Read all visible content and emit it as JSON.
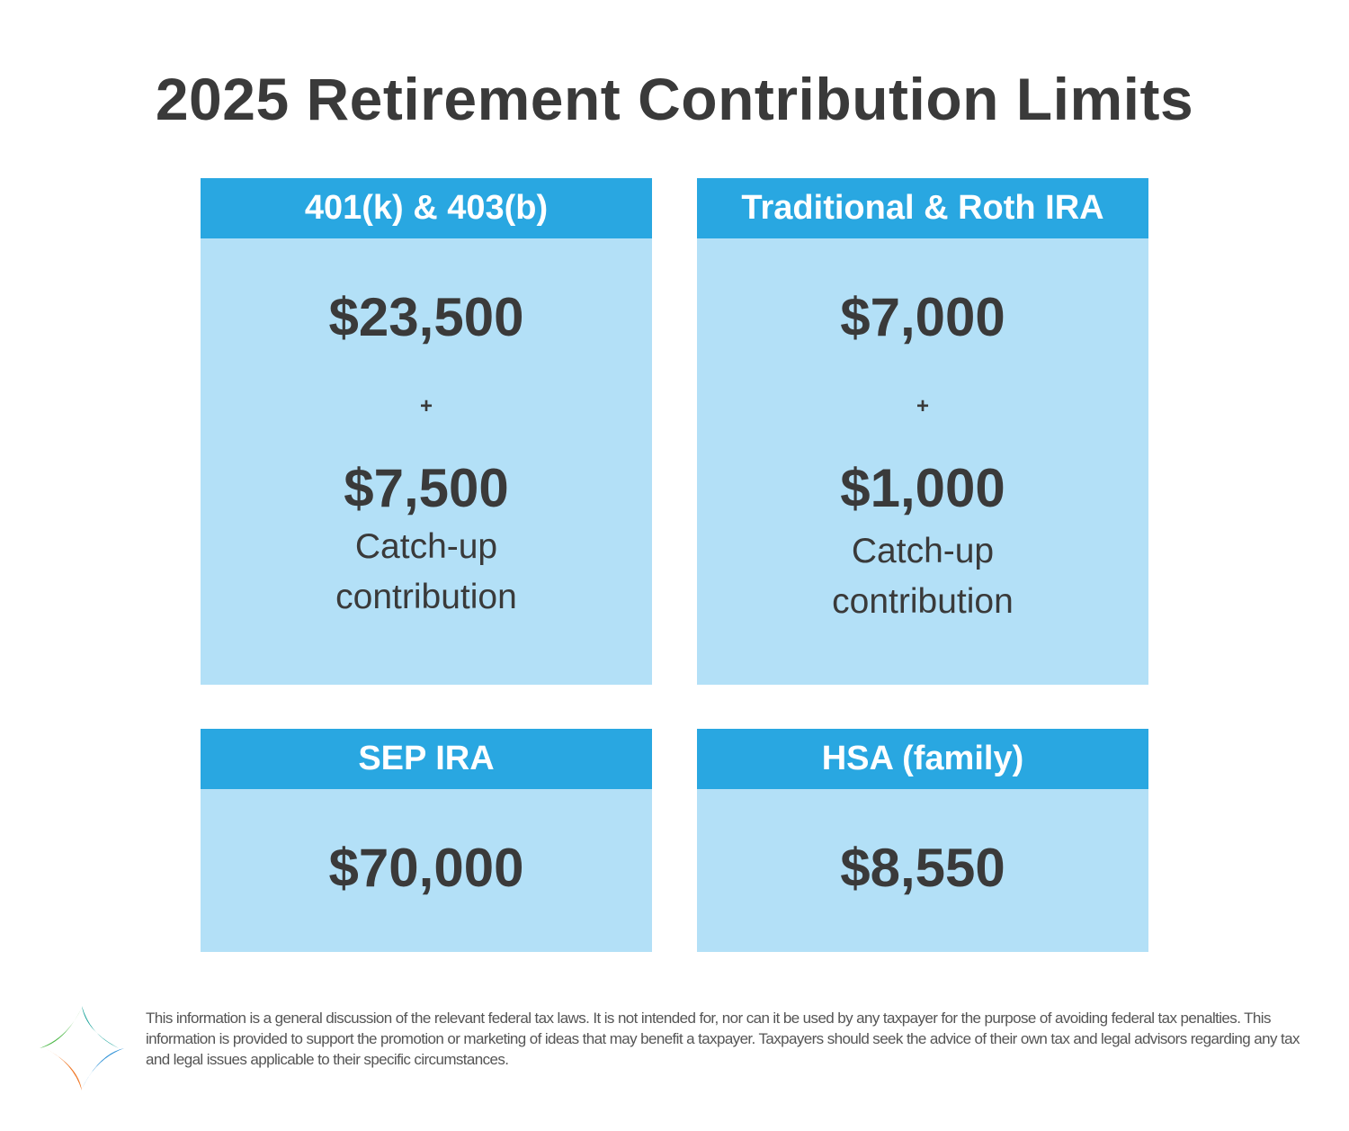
{
  "title": "2025 Retirement Contribution Limits",
  "cards": [
    {
      "header": "401(k) & 403(b)",
      "amount": "$23,500",
      "plus": "+",
      "catchup_amount": "$7,500",
      "catchup_line1": "Catch-up",
      "catchup_line2": "contribution"
    },
    {
      "header": "Traditional & Roth IRA",
      "amount": "$7,000",
      "plus": "+",
      "catchup_amount": "$1,000",
      "catchup_line1": "Catch-up",
      "catchup_line2": "contribution"
    },
    {
      "header": "SEP IRA",
      "amount": "$70,000"
    },
    {
      "header": "HSA (family)",
      "amount": "$8,550"
    }
  ],
  "disclaimer": "This information is a general discussion of the relevant federal tax laws. It is not intended for, nor can it be used by any taxpayer for the purpose of avoiding federal tax penalties. This information is provided to support the promotion or marketing of ideas that may benefit a taxpayer. Taxpayers should seek the advice of their own tax and legal advisors regarding any tax and legal issues applicable to their specific circumstances.",
  "colors": {
    "header_blue": "#29a7e1",
    "card_blue": "#b3e0f7",
    "text_dark": "#3a3a3a"
  },
  "logo": {
    "icon": "four-point-star-logo"
  }
}
